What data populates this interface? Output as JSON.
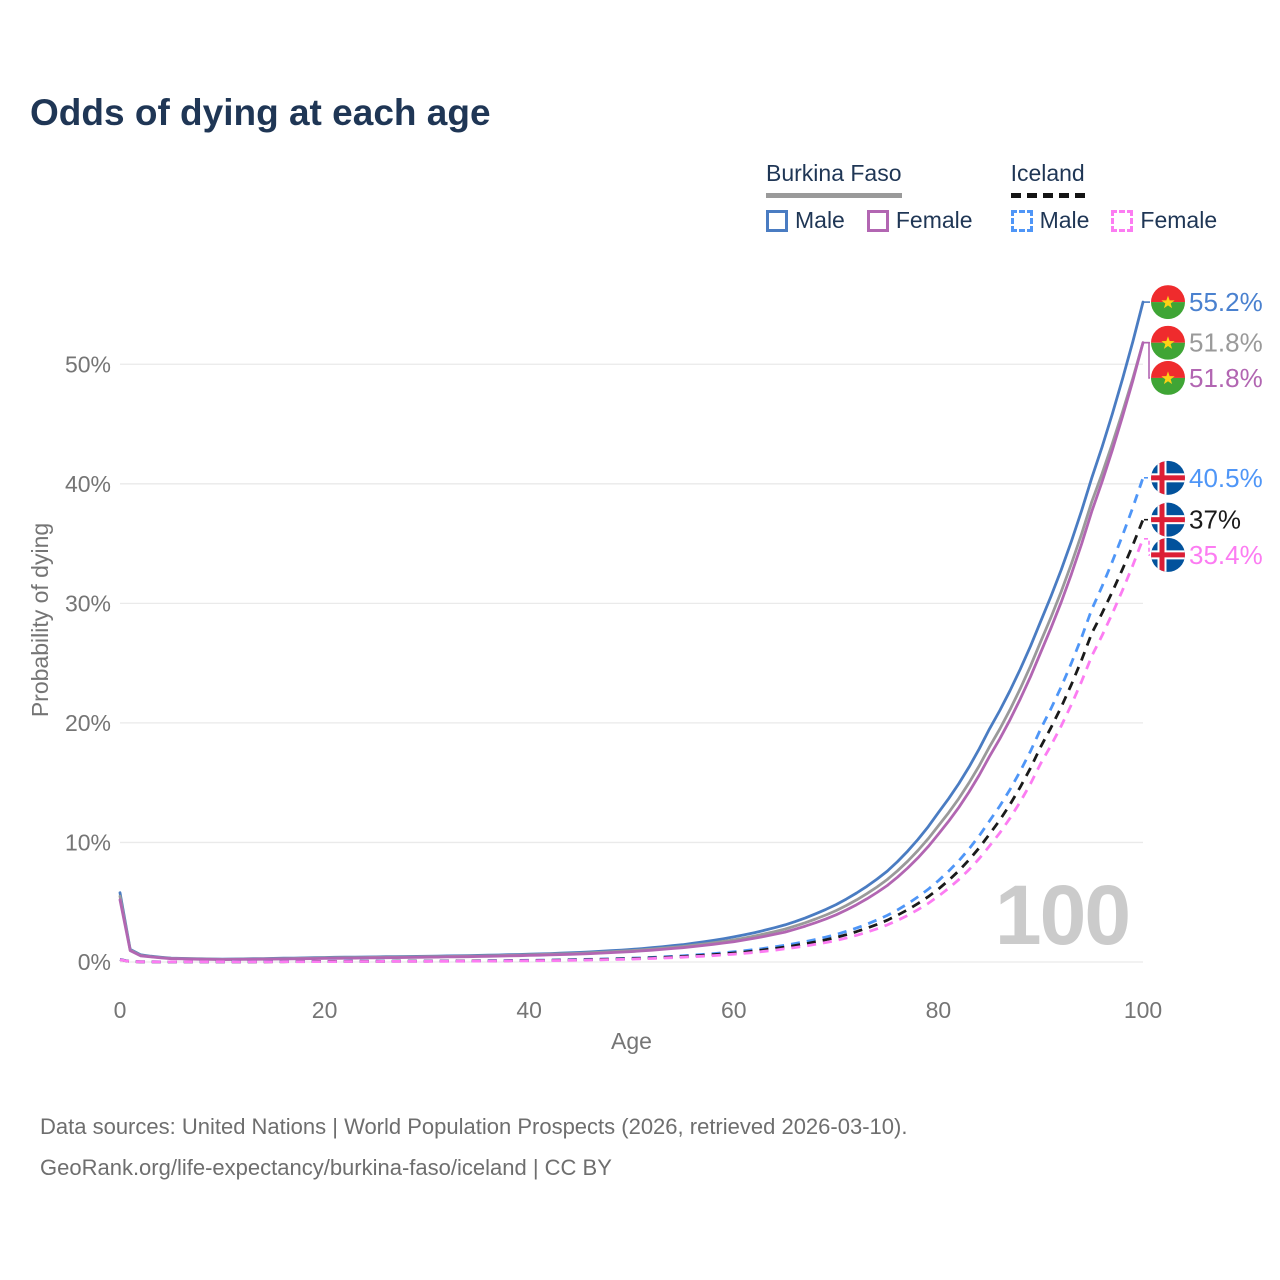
{
  "title": "Odds of dying at each age",
  "legend": {
    "groups": [
      {
        "name": "Burkina Faso",
        "line_style": "solid",
        "underline_color": "#9a9a9a",
        "items": [
          {
            "label": "Male",
            "color": "#4a7cc2",
            "dashed": false
          },
          {
            "label": "Female",
            "color": "#b266b2",
            "dashed": false
          }
        ]
      },
      {
        "name": "Iceland",
        "line_style": "dashed",
        "underline_color": "#141414",
        "items": [
          {
            "label": "Male",
            "color": "#4f96f7",
            "dashed": true
          },
          {
            "label": "Female",
            "color": "#fc7cf2",
            "dashed": true
          }
        ]
      }
    ]
  },
  "watermark_age": "100",
  "footer": {
    "line1": "Data sources: United Nations | World Population Prospects (2026, retrieved 2026-03-10).",
    "line2": "GeoRank.org/life-expectancy/burkina-faso/iceland | CC BY"
  },
  "chart_data": {
    "type": "line",
    "title": "Odds of dying at each age",
    "xlabel": "Age",
    "ylabel": "Probability of dying",
    "xlim": [
      0,
      100
    ],
    "ylim": [
      0,
      57
    ],
    "x_ticks": [
      0,
      20,
      40,
      60,
      80,
      100
    ],
    "y_ticks": [
      {
        "value": 0,
        "label": "0%"
      },
      {
        "value": 10,
        "label": "10%"
      },
      {
        "value": 20,
        "label": "20%"
      },
      {
        "value": 30,
        "label": "30%"
      },
      {
        "value": 40,
        "label": "40%"
      },
      {
        "value": 50,
        "label": "50%"
      }
    ],
    "grid": true,
    "legend_position": "top-right",
    "ages": [
      0,
      1,
      2,
      5,
      10,
      15,
      20,
      25,
      30,
      35,
      40,
      45,
      50,
      55,
      60,
      65,
      70,
      75,
      80,
      85,
      90,
      95,
      100
    ],
    "series": [
      {
        "name": "Burkina Faso Male",
        "country": "burkina-faso",
        "sex": "male",
        "color": "#4a7cc2",
        "label_color": "#4a81cf",
        "dashed": false,
        "end_label": "55.2%",
        "values": [
          5.8,
          1.05,
          0.6,
          0.32,
          0.24,
          0.3,
          0.38,
          0.43,
          0.48,
          0.55,
          0.65,
          0.8,
          1.05,
          1.45,
          2.1,
          3.1,
          4.8,
          7.6,
          12.5,
          19.5,
          28.5,
          40.5,
          55.2
        ]
      },
      {
        "name": "Burkina Faso Both sexes",
        "country": "burkina-faso",
        "sex": "both",
        "color": "#9a9a9a",
        "label_color": "#9a9a9a",
        "dashed": false,
        "end_label": "51.8%",
        "values": [
          5.5,
          1.0,
          0.55,
          0.3,
          0.22,
          0.27,
          0.34,
          0.39,
          0.44,
          0.5,
          0.6,
          0.73,
          0.95,
          1.3,
          1.85,
          2.75,
          4.3,
          6.9,
          11.4,
          18.0,
          26.8,
          38.5,
          51.8
        ]
      },
      {
        "name": "Burkina Faso Female",
        "country": "burkina-faso",
        "sex": "female",
        "color": "#b266b2",
        "label_color": "#b266b2",
        "dashed": false,
        "end_label": "51.8%",
        "values": [
          5.2,
          0.95,
          0.52,
          0.28,
          0.2,
          0.24,
          0.3,
          0.35,
          0.4,
          0.46,
          0.55,
          0.67,
          0.87,
          1.2,
          1.7,
          2.5,
          3.95,
          6.4,
          10.7,
          17.2,
          25.9,
          37.7,
          51.8
        ]
      },
      {
        "name": "Iceland Male",
        "country": "iceland",
        "sex": "male",
        "color": "#4f96f7",
        "label_color": "#4f96f7",
        "dashed": true,
        "end_label": "40.5%",
        "values": [
          0.22,
          0.04,
          0.02,
          0.012,
          0.012,
          0.03,
          0.06,
          0.07,
          0.08,
          0.1,
          0.14,
          0.21,
          0.32,
          0.52,
          0.85,
          1.4,
          2.3,
          3.9,
          6.8,
          11.8,
          19.5,
          29.5,
          40.5
        ]
      },
      {
        "name": "Iceland Both sexes",
        "country": "iceland",
        "sex": "both",
        "color": "#1a1a1a",
        "label_color": "#1a1a1a",
        "dashed": true,
        "end_label": "37%",
        "values": [
          0.2,
          0.035,
          0.018,
          0.01,
          0.01,
          0.025,
          0.05,
          0.06,
          0.07,
          0.09,
          0.12,
          0.18,
          0.28,
          0.46,
          0.75,
          1.25,
          2.05,
          3.5,
          6.1,
          10.7,
          18.0,
          27.5,
          37.0
        ]
      },
      {
        "name": "Iceland Female",
        "country": "iceland",
        "sex": "female",
        "color": "#fc7cf2",
        "label_color": "#fc7cf2",
        "dashed": true,
        "end_label": "35.4%",
        "values": [
          0.18,
          0.03,
          0.015,
          0.009,
          0.009,
          0.02,
          0.035,
          0.045,
          0.055,
          0.075,
          0.1,
          0.15,
          0.24,
          0.4,
          0.65,
          1.1,
          1.8,
          3.1,
          5.5,
          9.7,
          16.6,
          25.6,
          35.4
        ]
      }
    ],
    "flag_colors": {
      "burkina_faso_red": "#ef2b2d",
      "burkina_faso_green": "#3fa535",
      "burkina_faso_star": "#fcd116",
      "iceland_blue": "#02529c",
      "iceland_white": "#ffffff",
      "iceland_red": "#dc1e35"
    },
    "axis_color": "#757575",
    "grid_color": "#eaeaea",
    "watermark_color": "#cbcbcb"
  }
}
